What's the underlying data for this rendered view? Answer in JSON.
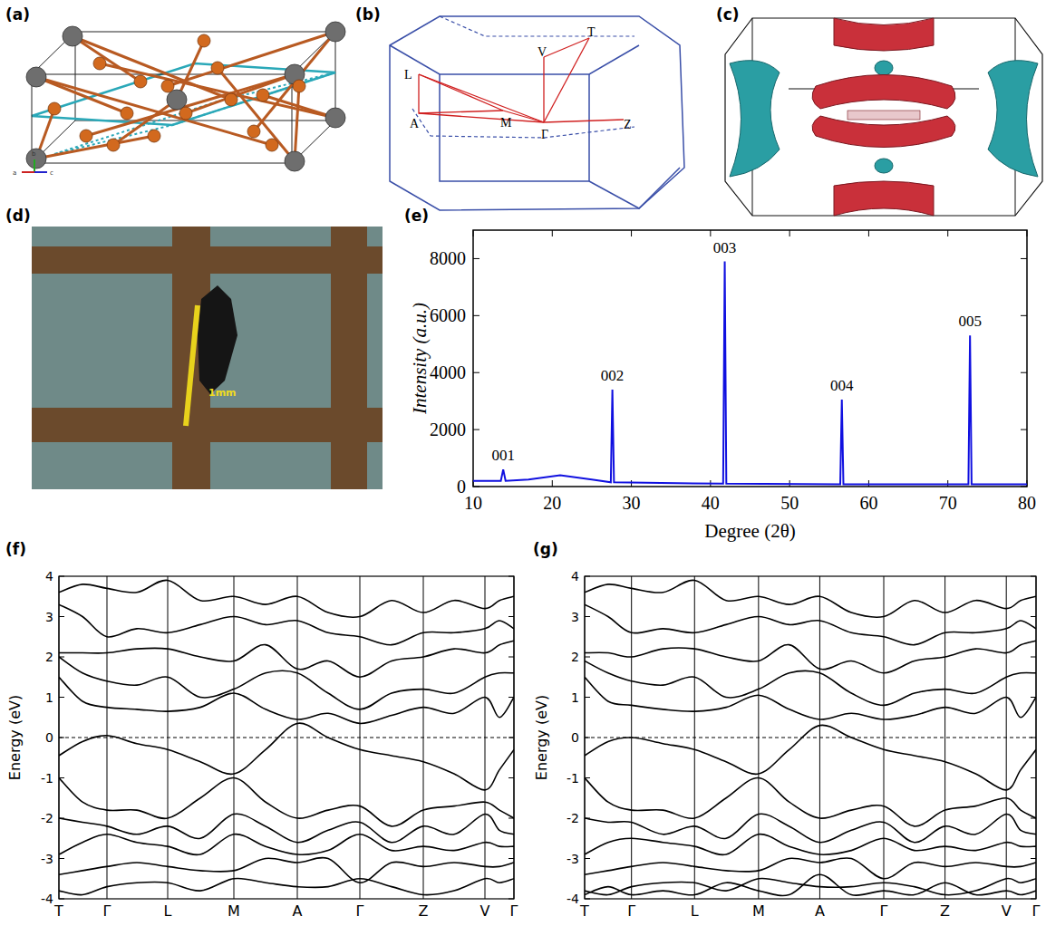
{
  "panel_labels": [
    "(a)",
    "(b)",
    "(c)",
    "(d)",
    "(e)",
    "(f)",
    "(g)"
  ],
  "structure": {
    "axes": [
      "a",
      "b",
      "c"
    ]
  },
  "brillouin_zone": {
    "points": [
      "L",
      "V",
      "T",
      "A",
      "M",
      "Γ",
      "Z"
    ]
  },
  "photo": {
    "scale_label": "1mm"
  },
  "chart_data": [
    {
      "type": "line",
      "xlabel": "Degree (2θ)",
      "ylabel": "Intensity (a.u.)",
      "color": "#1010e0",
      "x": [
        10,
        13.5,
        13.8,
        14.1,
        17,
        21,
        25,
        27.4,
        27.6,
        27.8,
        41.6,
        41.8,
        42,
        56.4,
        56.6,
        56.8,
        72.6,
        72.8,
        73,
        80
      ],
      "values": [
        200,
        200,
        600,
        200,
        250,
        400,
        250,
        150,
        3400,
        150,
        100,
        7900,
        100,
        80,
        3050,
        80,
        80,
        5300,
        80,
        80
      ],
      "xlim": [
        10,
        80
      ],
      "xticks": [
        10,
        20,
        30,
        40,
        50,
        60,
        70,
        80
      ],
      "ylim": [
        0,
        9000
      ],
      "yticks": [
        0,
        2000,
        4000,
        6000,
        8000
      ],
      "annotations": [
        {
          "text": "001",
          "x": 13.8,
          "y": 600
        },
        {
          "text": "002",
          "x": 27.6,
          "y": 3400
        },
        {
          "text": "003",
          "x": 41.8,
          "y": 7900
        },
        {
          "text": "004",
          "x": 56.6,
          "y": 3050
        },
        {
          "text": "005",
          "x": 72.8,
          "y": 5300
        }
      ]
    },
    {
      "type": "line",
      "ylabel": "Energy (eV)",
      "color": "#000000",
      "grid": true,
      "fermi_level": 0,
      "x": [
        0,
        26,
        53,
        86,
        120,
        156,
        193,
        228,
        263,
        297,
        332,
        367,
        402,
        436,
        470,
        486,
        502
      ],
      "xlim": [
        0,
        502
      ],
      "xticks": [
        {
          "value": 0,
          "label": "T"
        },
        {
          "value": 53,
          "label": "Γ"
        },
        {
          "value": 120,
          "label": "L"
        },
        {
          "value": 193,
          "label": "M"
        },
        {
          "value": 263,
          "label": "A"
        },
        {
          "value": 332,
          "label": "Γ"
        },
        {
          "value": 402,
          "label": "Z"
        },
        {
          "value": 470,
          "label": "V"
        },
        {
          "value": 502,
          "label": "Γ"
        }
      ],
      "ylim": [
        -4,
        4
      ],
      "yticks": [
        -4,
        -3,
        -2,
        -1,
        0,
        1,
        2,
        3,
        4
      ],
      "series": [
        {
          "values": [
            -0.45,
            -0.1,
            0.05,
            -0.15,
            -0.3,
            -0.6,
            -0.9,
            -0.3,
            0.35,
            0.0,
            -0.3,
            -0.45,
            -0.6,
            -0.9,
            -1.3,
            -0.8,
            -0.3
          ]
        },
        {
          "values": [
            1.5,
            0.9,
            0.75,
            0.7,
            0.65,
            0.75,
            1.1,
            0.7,
            0.45,
            0.6,
            0.35,
            0.55,
            0.75,
            0.6,
            1.0,
            0.5,
            1.0
          ]
        },
        {
          "values": [
            2.0,
            1.6,
            1.4,
            1.3,
            1.5,
            1.0,
            1.2,
            1.6,
            1.6,
            1.1,
            0.7,
            1.1,
            1.2,
            1.1,
            1.5,
            1.6,
            1.6
          ]
        },
        {
          "values": [
            2.1,
            2.1,
            2.1,
            2.2,
            2.2,
            2.0,
            1.9,
            2.3,
            1.7,
            1.9,
            1.5,
            1.9,
            2.0,
            2.2,
            2.1,
            2.3,
            2.4
          ]
        },
        {
          "values": [
            3.3,
            3.0,
            2.5,
            2.7,
            2.6,
            2.8,
            3.0,
            2.8,
            2.9,
            2.6,
            2.5,
            2.3,
            2.6,
            2.6,
            2.7,
            2.9,
            2.7
          ]
        },
        {
          "values": [
            3.6,
            3.8,
            3.7,
            3.6,
            3.9,
            3.4,
            3.5,
            3.3,
            3.5,
            3.1,
            3.0,
            3.4,
            3.1,
            3.4,
            3.2,
            3.4,
            3.5
          ]
        },
        {
          "values": [
            -1.0,
            -1.6,
            -1.8,
            -1.8,
            -2.0,
            -1.5,
            -1.0,
            -1.6,
            -2.0,
            -1.8,
            -1.7,
            -2.2,
            -1.8,
            -1.7,
            -1.6,
            -1.8,
            -2.0
          ]
        },
        {
          "values": [
            -2.0,
            -2.1,
            -2.2,
            -2.4,
            -2.2,
            -2.5,
            -1.9,
            -2.2,
            -2.6,
            -2.3,
            -2.1,
            -2.6,
            -2.2,
            -2.4,
            -1.9,
            -2.3,
            -2.4
          ]
        },
        {
          "values": [
            -2.9,
            -2.6,
            -2.4,
            -2.6,
            -2.7,
            -2.9,
            -2.4,
            -2.7,
            -2.9,
            -2.8,
            -2.4,
            -2.8,
            -2.7,
            -2.8,
            -2.6,
            -2.7,
            -2.7
          ]
        },
        {
          "values": [
            -3.4,
            -3.3,
            -3.2,
            -3.1,
            -3.2,
            -3.3,
            -3.3,
            -3.0,
            -3.1,
            -3.0,
            -3.6,
            -3.1,
            -3.2,
            -3.1,
            -3.2,
            -3.2,
            -3.1
          ]
        },
        {
          "values": [
            -3.8,
            -3.9,
            -3.7,
            -3.6,
            -3.6,
            -3.8,
            -3.5,
            -3.6,
            -3.7,
            -3.7,
            -3.5,
            -3.7,
            -3.9,
            -3.8,
            -3.5,
            -3.6,
            -3.5
          ]
        }
      ]
    },
    {
      "type": "line",
      "ylabel": "Energy (eV)",
      "color": "#000000",
      "grid": true,
      "fermi_level": 0,
      "x": [
        0,
        26,
        52,
        87,
        122,
        157,
        193,
        227,
        261,
        296,
        332,
        366,
        400,
        434,
        468,
        484,
        501
      ],
      "xlim": [
        0,
        501
      ],
      "xticks": [
        {
          "value": 0,
          "label": "T"
        },
        {
          "value": 52,
          "label": "Γ"
        },
        {
          "value": 122,
          "label": "L"
        },
        {
          "value": 193,
          "label": "M"
        },
        {
          "value": 261,
          "label": "A"
        },
        {
          "value": 332,
          "label": "Γ"
        },
        {
          "value": 400,
          "label": "Z"
        },
        {
          "value": 468,
          "label": "V"
        },
        {
          "value": 501,
          "label": "Γ"
        }
      ],
      "ylim": [
        -4,
        4
      ],
      "yticks": [
        -4,
        -3,
        -2,
        -1,
        0,
        1,
        2,
        3,
        4
      ],
      "series": [
        {
          "values": [
            -0.45,
            -0.1,
            0.0,
            -0.15,
            -0.3,
            -0.6,
            -0.9,
            -0.3,
            0.3,
            0.0,
            -0.3,
            -0.45,
            -0.6,
            -0.9,
            -1.3,
            -0.8,
            -0.3
          ]
        },
        {
          "values": [
            1.5,
            0.9,
            0.8,
            0.7,
            0.65,
            0.75,
            1.05,
            0.7,
            0.45,
            0.6,
            0.45,
            0.55,
            0.75,
            0.6,
            1.0,
            0.5,
            1.0
          ]
        },
        {
          "values": [
            1.9,
            1.6,
            1.4,
            1.3,
            1.5,
            1.0,
            1.2,
            1.6,
            1.6,
            1.1,
            0.8,
            1.1,
            1.2,
            1.1,
            1.5,
            1.6,
            1.6
          ]
        },
        {
          "values": [
            2.1,
            2.1,
            2.0,
            2.2,
            2.2,
            2.0,
            1.9,
            2.3,
            1.7,
            1.9,
            1.6,
            1.9,
            2.0,
            2.2,
            2.1,
            2.3,
            2.4
          ]
        },
        {
          "values": [
            3.3,
            3.0,
            2.6,
            2.7,
            2.6,
            2.8,
            3.0,
            2.8,
            2.9,
            2.6,
            2.5,
            2.3,
            2.6,
            2.6,
            2.7,
            2.9,
            2.7
          ]
        },
        {
          "values": [
            3.6,
            3.8,
            3.7,
            3.6,
            3.9,
            3.4,
            3.5,
            3.3,
            3.5,
            3.1,
            3.0,
            3.4,
            3.1,
            3.4,
            3.2,
            3.4,
            3.5
          ]
        },
        {
          "values": [
            -1.0,
            -1.6,
            -1.8,
            -1.8,
            -2.0,
            -1.5,
            -1.0,
            -1.6,
            -2.0,
            -1.8,
            -1.7,
            -2.2,
            -1.8,
            -1.7,
            -1.5,
            -1.8,
            -2.0
          ]
        },
        {
          "values": [
            -2.0,
            -2.1,
            -2.1,
            -2.4,
            -2.2,
            -2.5,
            -1.9,
            -2.2,
            -2.6,
            -2.3,
            -2.1,
            -2.6,
            -2.2,
            -2.4,
            -1.9,
            -2.3,
            -2.4
          ]
        },
        {
          "values": [
            -2.9,
            -2.6,
            -2.5,
            -2.6,
            -2.7,
            -2.9,
            -2.4,
            -2.7,
            -2.9,
            -2.8,
            -2.5,
            -2.8,
            -2.7,
            -2.8,
            -2.6,
            -2.7,
            -2.7
          ]
        },
        {
          "values": [
            -3.4,
            -3.3,
            -3.2,
            -3.1,
            -3.2,
            -3.3,
            -3.3,
            -3.0,
            -3.1,
            -3.0,
            -3.5,
            -3.1,
            -3.2,
            -3.1,
            -3.2,
            -3.2,
            -3.1
          ]
        },
        {
          "values": [
            -3.8,
            -3.9,
            -3.7,
            -3.6,
            -3.6,
            -3.8,
            -3.5,
            -3.6,
            -3.7,
            -3.7,
            -3.6,
            -3.7,
            -3.9,
            -3.8,
            -3.5,
            -3.6,
            -3.5
          ]
        },
        {
          "values": [
            -3.9,
            -3.7,
            -3.9,
            -3.8,
            -3.9,
            -3.6,
            -3.8,
            -3.9,
            -3.4,
            -3.9,
            -3.8,
            -3.9,
            -3.6,
            -3.9,
            -3.8,
            -3.9,
            -3.8
          ]
        }
      ]
    }
  ]
}
